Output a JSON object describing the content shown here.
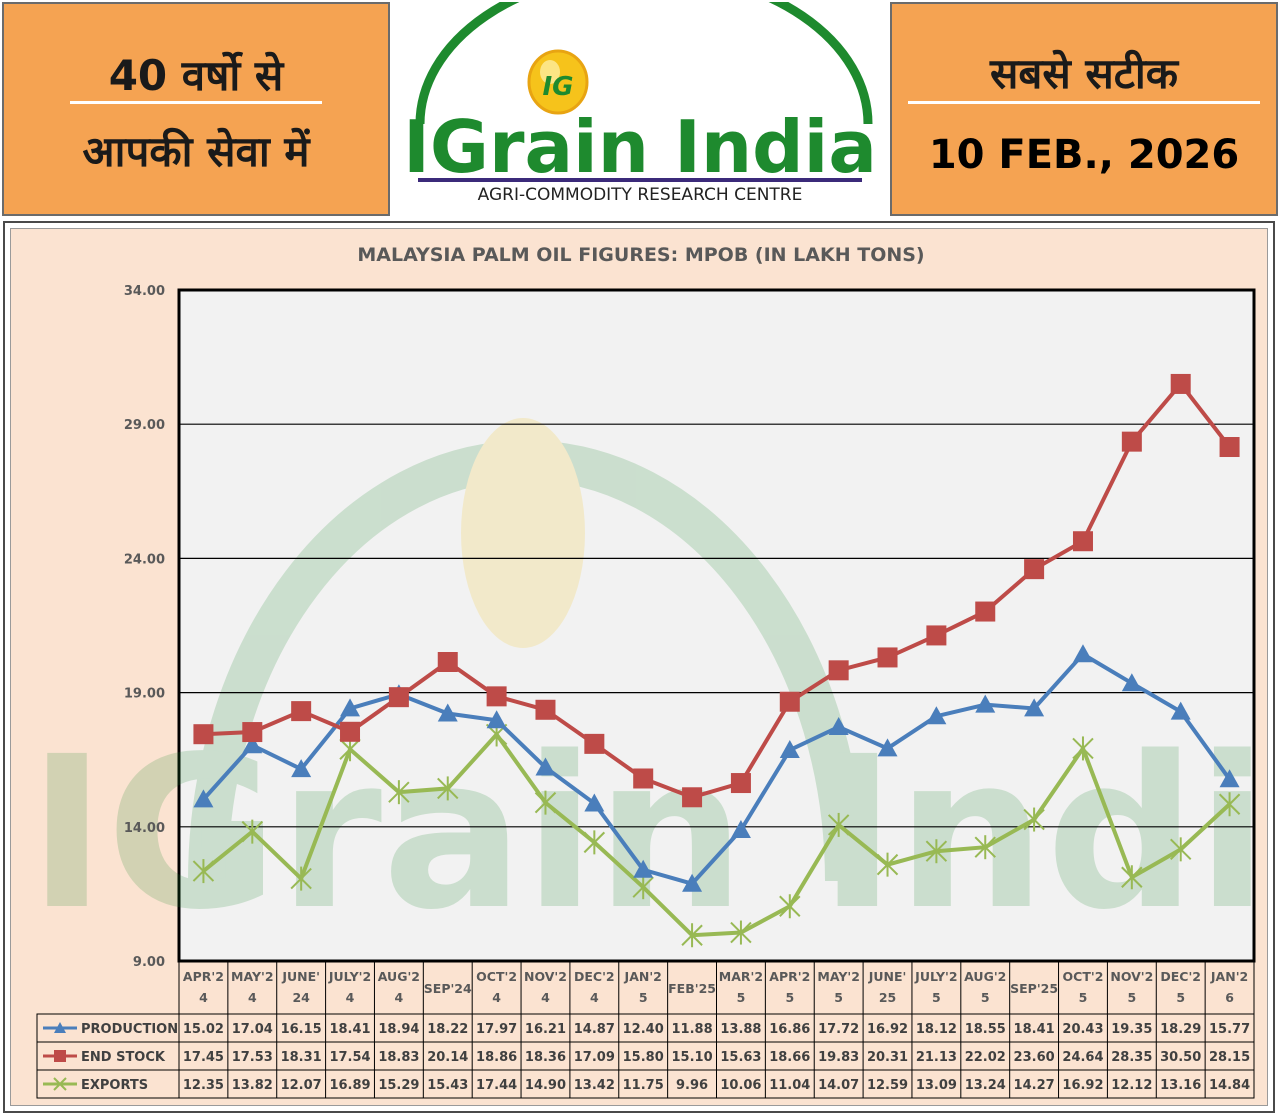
{
  "header": {
    "left_line1": "40 वर्षो से",
    "left_line2": "आपकी सेवा में",
    "brand_name": "IGrain India",
    "brand_tagline": "AGRI-COMMODITY RESEARCH CENTRE",
    "right_line1": "सबसे सटीक",
    "date": "10 FEB., 2026",
    "colors": {
      "header_bg": "#f5a352",
      "brand_green": "#1e8a2e"
    }
  },
  "chart_data": {
    "type": "line",
    "title": "MALAYSIA PALM OIL FIGURES: MPOB (IN LAKH TONS)",
    "xlabel": "",
    "ylabel": "",
    "ylim": [
      9,
      34
    ],
    "yticks": [
      "9.00",
      "14.00",
      "19.00",
      "24.00",
      "29.00",
      "34.00"
    ],
    "grid": true,
    "legend": "data-table-left",
    "categories": [
      [
        "APR'2",
        "4"
      ],
      [
        "MAY'2",
        "4"
      ],
      [
        "JUNE'",
        "24"
      ],
      [
        "JULY'2",
        "4"
      ],
      [
        "AUG'2",
        "4"
      ],
      [
        "SEP'24"
      ],
      [
        "OCT'2",
        "4"
      ],
      [
        "NOV'2",
        "4"
      ],
      [
        "DEC'2",
        "4"
      ],
      [
        "JAN'2",
        "5"
      ],
      [
        "FEB'25"
      ],
      [
        "MAR'2",
        "5"
      ],
      [
        "APR'2",
        "5"
      ],
      [
        "MAY'2",
        "5"
      ],
      [
        "JUNE'",
        "25"
      ],
      [
        "JULY'2",
        "5"
      ],
      [
        "AUG'2",
        "5"
      ],
      [
        "SEP'25"
      ],
      [
        "OCT'2",
        "5"
      ],
      [
        "NOV'2",
        "5"
      ],
      [
        "DEC'2",
        "5"
      ],
      [
        "JAN'2",
        "6"
      ]
    ],
    "series": [
      {
        "name": "PRODUCTION",
        "color": "#4a7ebb",
        "marker": "triangle",
        "values": [
          15.02,
          17.04,
          16.15,
          18.41,
          18.94,
          18.22,
          17.97,
          16.21,
          14.87,
          12.4,
          11.88,
          13.88,
          16.86,
          17.72,
          16.92,
          18.12,
          18.55,
          18.41,
          20.43,
          19.35,
          18.29,
          15.77
        ]
      },
      {
        "name": "END STOCK",
        "color": "#be4b48",
        "marker": "square",
        "values": [
          17.45,
          17.53,
          18.31,
          17.54,
          18.83,
          20.14,
          18.86,
          18.36,
          17.09,
          15.8,
          15.1,
          15.63,
          18.66,
          19.83,
          20.31,
          21.13,
          22.02,
          23.6,
          24.64,
          28.35,
          30.5,
          28.15
        ]
      },
      {
        "name": "EXPORTS",
        "color": "#98b954",
        "marker": "star",
        "values": [
          12.35,
          13.82,
          12.07,
          16.89,
          15.29,
          15.43,
          17.44,
          14.9,
          13.42,
          11.75,
          9.96,
          10.06,
          11.04,
          14.07,
          12.59,
          13.09,
          13.24,
          14.27,
          16.92,
          12.12,
          13.16,
          14.84
        ]
      }
    ]
  }
}
